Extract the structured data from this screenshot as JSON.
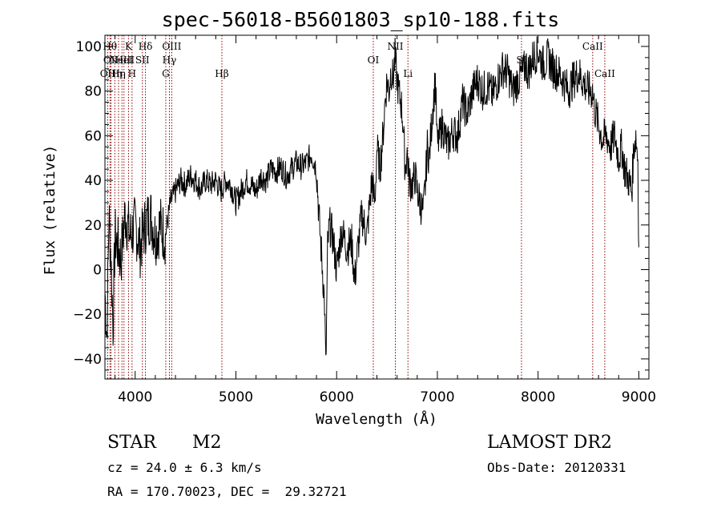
{
  "header": {
    "title": "spec-56018-B5601803_sp10-188.fits"
  },
  "info": {
    "class": "STAR",
    "subclass": "M2",
    "survey": "LAMOST DR2",
    "cz": "cz = 24.0 ± 6.3 km/s",
    "obs_date": "Obs-Date: 20120331",
    "radec": "RA = 170.70023, DEC =  29.32721"
  },
  "colors": {
    "line_marker": "#8b0000",
    "spectrum": "#000000",
    "axis": "#000000"
  },
  "chart_data": {
    "type": "line",
    "title": "spec-56018-B5601803_sp10-188.fits",
    "xlabel": "Wavelength (Å)",
    "ylabel": "Flux (relative)",
    "xlim": [
      3700,
      9100
    ],
    "ylim": [
      -49,
      105
    ],
    "xticks": [
      4000,
      5000,
      6000,
      7000,
      8000,
      9000
    ],
    "yticks": [
      -40,
      -20,
      0,
      20,
      40,
      60,
      80,
      100
    ],
    "grid": false,
    "series": [
      {
        "x": [
          3700,
          3720,
          3740,
          3760,
          3780,
          3800,
          3830,
          3860,
          3900,
          3950,
          4000,
          4050,
          4100,
          4150,
          4200,
          4250,
          4300,
          4350,
          4400,
          4450,
          4500,
          4550,
          4600,
          4650,
          4700,
          4750,
          4800,
          4850,
          4900,
          4950,
          5000,
          5050,
          5100,
          5150,
          5200,
          5250,
          5300,
          5350,
          5400,
          5450,
          5500,
          5550,
          5600,
          5650,
          5700,
          5750,
          5800,
          5830,
          5860,
          5880,
          5893,
          5900,
          5910,
          5930,
          5960,
          6000,
          6050,
          6100,
          6150,
          6180,
          6200,
          6250,
          6300,
          6350,
          6380,
          6400,
          6430,
          6460,
          6480,
          6500,
          6520,
          6540,
          6560,
          6580,
          6600,
          6620,
          6640,
          6660,
          6680,
          6700,
          6720,
          6750,
          6780,
          6800,
          6830,
          6860,
          6880,
          6900,
          6920,
          6950,
          6980,
          7000,
          7050,
          7100,
          7150,
          7200,
          7250,
          7300,
          7350,
          7400,
          7450,
          7500,
          7550,
          7600,
          7650,
          7700,
          7750,
          7800,
          7850,
          7880,
          7900,
          7950,
          8000,
          8050,
          8100,
          8150,
          8200,
          8250,
          8300,
          8350,
          8400,
          8450,
          8500,
          8540,
          8560,
          8600,
          8640,
          8680,
          8720,
          8760,
          8800,
          8830,
          8860,
          8900,
          8930,
          8950,
          8970,
          8990,
          9000
        ],
        "y": [
          -10,
          -30,
          25,
          5,
          -25,
          15,
          10,
          5,
          25,
          15,
          20,
          10,
          20,
          25,
          15,
          20,
          15,
          30,
          35,
          40,
          38,
          42,
          40,
          36,
          40,
          38,
          40,
          35,
          40,
          38,
          30,
          35,
          40,
          38,
          35,
          42,
          40,
          45,
          44,
          46,
          42,
          45,
          48,
          46,
          48,
          52,
          45,
          20,
          0,
          -15,
          -45,
          -25,
          10,
          20,
          15,
          0,
          18,
          10,
          12,
          -5,
          5,
          25,
          15,
          40,
          30,
          55,
          45,
          60,
          75,
          85,
          80,
          90,
          85,
          95,
          85,
          78,
          75,
          65,
          45,
          52,
          40,
          38,
          42,
          35,
          30,
          25,
          38,
          55,
          50,
          70,
          85,
          55,
          65,
          55,
          62,
          60,
          75,
          70,
          80,
          85,
          80,
          82,
          78,
          85,
          90,
          88,
          80,
          85,
          88,
          92,
          88,
          95,
          98,
          92,
          95,
          90,
          88,
          85,
          80,
          85,
          88,
          84,
          80,
          80,
          72,
          65,
          58,
          60,
          55,
          60,
          50,
          55,
          45,
          40,
          35,
          55,
          60,
          50,
          10
        ]
      }
    ],
    "line_markers": [
      {
        "wavelength": 3727,
        "row": 2,
        "label": "OII"
      },
      {
        "wavelength": 3750,
        "row": 0,
        "label": "Hθ"
      },
      {
        "wavelength": 3760,
        "row": 1,
        "label": "OII"
      },
      {
        "wavelength": 3798,
        "row": 2,
        "label": "Hη"
      },
      {
        "wavelength": 3835,
        "row": 2,
        "label": "Hη"
      },
      {
        "wavelength": 3869,
        "row": 1,
        "label": "NeIII"
      },
      {
        "wavelength": 3889,
        "row": 1,
        "label": "HeI"
      },
      {
        "wavelength": 3934,
        "row": 0,
        "label": "K"
      },
      {
        "wavelength": 3969,
        "row": 2,
        "label": "H"
      },
      {
        "wavelength": 4072,
        "row": 1,
        "label": "SII"
      },
      {
        "wavelength": 4102,
        "row": 0,
        "label": "Hδ"
      },
      {
        "wavelength": 4304,
        "row": 2,
        "label": "G"
      },
      {
        "wavelength": 4340,
        "row": 1,
        "label": "Hγ"
      },
      {
        "wavelength": 4363,
        "row": 0,
        "label": "OIII"
      },
      {
        "wavelength": 4861,
        "row": 2,
        "label": "Hβ"
      },
      {
        "wavelength": 6364,
        "row": 1,
        "label": "OI"
      },
      {
        "wavelength": 6583,
        "row": 0,
        "label": "NII"
      },
      {
        "wavelength": 6708,
        "row": 2,
        "label": "Li"
      },
      {
        "wavelength": 7835,
        "row": 1,
        "label": "SI"
      },
      {
        "wavelength": 8542,
        "row": 0,
        "label": "CaII"
      },
      {
        "wavelength": 8662,
        "row": 2,
        "label": "CaII"
      }
    ]
  }
}
